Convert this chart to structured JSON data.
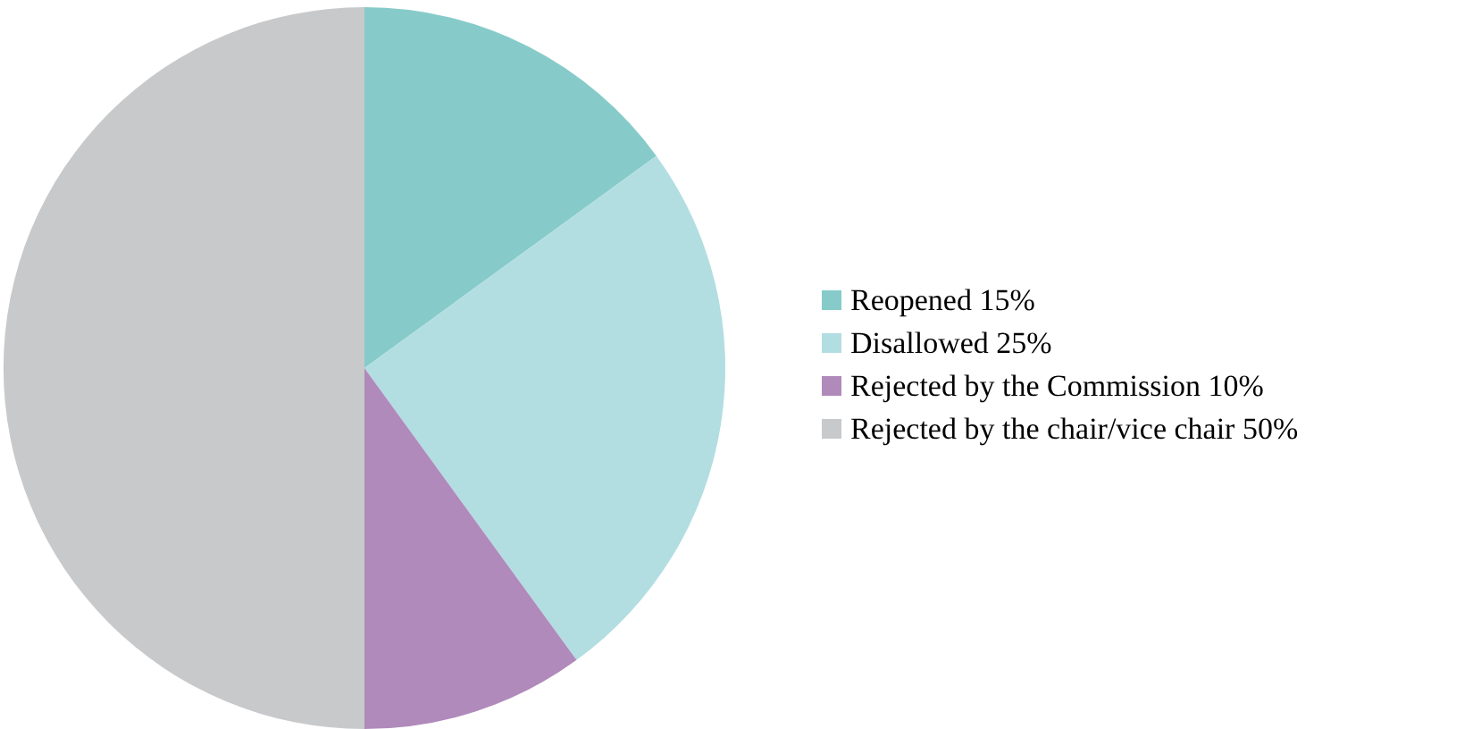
{
  "chart_data": {
    "type": "pie",
    "categories": [
      "Reopened 15%",
      "Disallowed 25%",
      "Rejected by the Commission 10%",
      "Rejected by the chair/vice chair 50%"
    ],
    "values": [
      15,
      25,
      10,
      50
    ],
    "colors": [
      "#86cbc9",
      "#b2dee1",
      "#b08abb",
      "#c8c9cb"
    ],
    "legend": "right"
  }
}
